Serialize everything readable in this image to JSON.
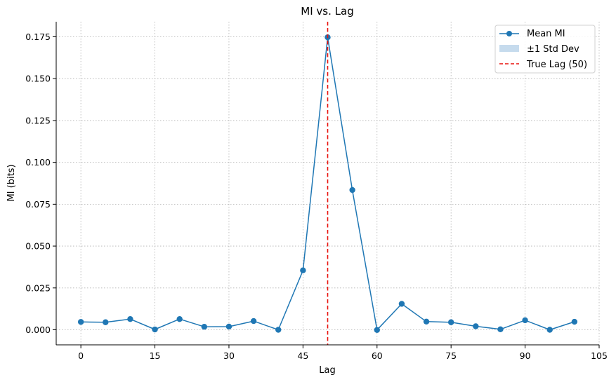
{
  "chart_data": {
    "type": "line",
    "title": "MI vs. Lag",
    "xlabel": "Lag",
    "ylabel": "MI (bits)",
    "xlim": [
      -5,
      105
    ],
    "ylim": [
      -0.009,
      0.184
    ],
    "x_ticks": [
      0,
      15,
      30,
      45,
      60,
      75,
      90,
      105
    ],
    "x_tick_labels": [
      "0",
      "15",
      "30",
      "45",
      "60",
      "75",
      "90",
      "105"
    ],
    "y_ticks": [
      0.0,
      0.025,
      0.05,
      0.075,
      0.1,
      0.125,
      0.15,
      0.175
    ],
    "y_tick_labels": [
      "0.000",
      "0.025",
      "0.050",
      "0.075",
      "0.100",
      "0.125",
      "0.150",
      "0.175"
    ],
    "grid": true,
    "legend_position": "top-right",
    "series": [
      {
        "name": "Mean MI",
        "color": "#1f77b4",
        "marker": "circle",
        "x": [
          0,
          5,
          10,
          15,
          20,
          25,
          30,
          35,
          40,
          45,
          50,
          55,
          60,
          65,
          70,
          75,
          80,
          85,
          90,
          95,
          100
        ],
        "values": [
          0.0047,
          0.0045,
          0.0064,
          0.0002,
          0.0064,
          0.0018,
          0.0019,
          0.0052,
          0.0,
          0.0355,
          0.1747,
          0.0835,
          -0.0001,
          0.0155,
          0.0049,
          0.0045,
          0.0021,
          0.0003,
          0.0057,
          0.0,
          0.0048
        ]
      }
    ],
    "legend_entries": [
      {
        "label": "Mean MI",
        "kind": "line-marker",
        "color": "#1f77b4"
      },
      {
        "label": "±1 Std Dev",
        "kind": "band",
        "color": "#c6dbed"
      },
      {
        "label": "True Lag (50)",
        "kind": "dashed-line",
        "color": "#e8120c"
      }
    ],
    "vline": {
      "x": 50,
      "label": "True Lag (50)",
      "color": "#e8120c"
    }
  }
}
